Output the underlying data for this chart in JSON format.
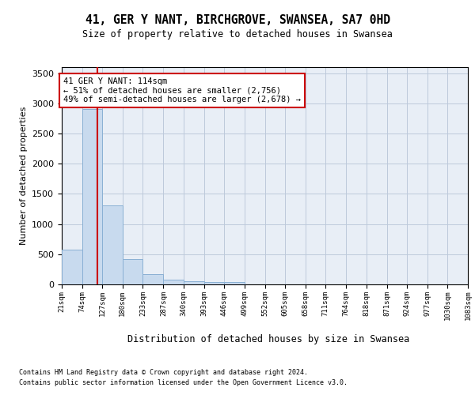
{
  "title": "41, GER Y NANT, BIRCHGROVE, SWANSEA, SA7 0HD",
  "subtitle": "Size of property relative to detached houses in Swansea",
  "xlabel": "Distribution of detached houses by size in Swansea",
  "ylabel": "Number of detached properties",
  "bar_color": "#c8daee",
  "bar_edge_color": "#8ab0d4",
  "grid_color": "#bdc9db",
  "background_color": "#e8eef6",
  "property_size_sqm": 114,
  "property_line_color": "#cc0000",
  "annotation_text": "41 GER Y NANT: 114sqm\n← 51% of detached houses are smaller (2,756)\n49% of semi-detached houses are larger (2,678) →",
  "bin_edges": [
    21,
    74,
    127,
    180,
    233,
    287,
    340,
    393,
    446,
    499,
    552,
    605,
    658,
    711,
    764,
    818,
    871,
    924,
    977,
    1030,
    1083
  ],
  "bin_labels": [
    "21sqm",
    "74sqm",
    "127sqm",
    "180sqm",
    "233sqm",
    "287sqm",
    "340sqm",
    "393sqm",
    "446sqm",
    "499sqm",
    "552sqm",
    "605sqm",
    "658sqm",
    "711sqm",
    "764sqm",
    "818sqm",
    "871sqm",
    "924sqm",
    "977sqm",
    "1030sqm",
    "1083sqm"
  ],
  "counts": [
    580,
    2900,
    1310,
    415,
    170,
    80,
    55,
    45,
    35,
    0,
    0,
    0,
    0,
    0,
    0,
    0,
    0,
    0,
    0,
    0
  ],
  "ylim": [
    0,
    3600
  ],
  "yticks": [
    0,
    500,
    1000,
    1500,
    2000,
    2500,
    3000,
    3500
  ],
  "footer_line1": "Contains HM Land Registry data © Crown copyright and database right 2024.",
  "footer_line2": "Contains public sector information licensed under the Open Government Licence v3.0."
}
